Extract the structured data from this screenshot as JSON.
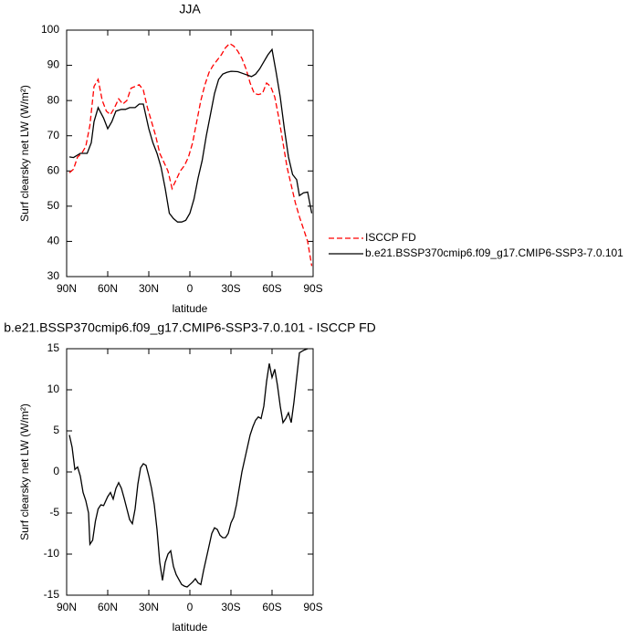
{
  "chart_data": [
    {
      "type": "line",
      "title": "JJA",
      "xlabel": "latitude",
      "ylabel": "Surf clearsky net LW (W/m²)",
      "xlim": [
        90,
        -90
      ],
      "ylim": [
        30,
        100
      ],
      "xticks": [
        {
          "value": 90,
          "label": "90N"
        },
        {
          "value": 60,
          "label": "60N"
        },
        {
          "value": 30,
          "label": "30N"
        },
        0,
        {
          "value": -30,
          "label": "30S"
        },
        {
          "value": -60,
          "label": "60S"
        },
        {
          "value": -90,
          "label": "90S"
        }
      ],
      "yticks": [
        30,
        40,
        50,
        60,
        70,
        80,
        90,
        100
      ],
      "legend": "right",
      "series": [
        {
          "name": "ISCCP FD",
          "color": "#ff0000",
          "dashed": true,
          "x": [
            88,
            85,
            82,
            79,
            76,
            73,
            70,
            67,
            64,
            61,
            58,
            55,
            52,
            49,
            46,
            43,
            40,
            37,
            34,
            31,
            28,
            25,
            22,
            19,
            16,
            13,
            10,
            7,
            4,
            1,
            -2,
            -5,
            -8,
            -11,
            -14,
            -17,
            -20,
            -23,
            -26,
            -29,
            -32,
            -35,
            -38,
            -41,
            -44,
            -47,
            -50,
            -53,
            -56,
            -59,
            -62,
            -65,
            -68,
            -71,
            -74,
            -77,
            -80,
            -83,
            -86,
            -89
          ],
          "values": [
            59.5,
            60.5,
            64,
            65,
            67,
            73,
            84,
            86,
            80,
            77,
            76,
            78,
            80.5,
            79,
            80,
            83.5,
            84,
            84.5,
            83,
            78,
            74,
            70,
            65,
            62.5,
            60,
            55,
            57.5,
            60,
            61.5,
            64,
            68,
            74,
            80,
            84.5,
            88,
            90,
            91.5,
            93,
            95,
            96.2,
            95.5,
            94,
            92,
            89,
            85,
            82,
            81.7,
            82,
            85,
            84,
            81,
            75,
            68,
            61,
            56,
            51,
            47,
            43.5,
            40,
            33
          ]
        },
        {
          "name": "b.e21.BSSP370cmip6.f09_g17.CMIP6-SSP3-7.0.101",
          "color": "#000000",
          "dashed": false,
          "x": [
            88,
            85,
            80,
            75,
            72,
            70,
            67,
            63,
            60,
            57,
            54,
            50,
            47,
            44,
            40,
            37,
            34,
            30,
            27,
            24,
            21,
            18,
            15,
            12,
            9,
            6,
            3,
            0,
            -3,
            -6,
            -9,
            -12,
            -15,
            -18,
            -21,
            -24,
            -27,
            -30,
            -35,
            -40,
            -45,
            -48,
            -51,
            -54,
            -57,
            -60,
            -63,
            -66,
            -69,
            -72,
            -75,
            -78,
            -80,
            -83,
            -86,
            -89
          ],
          "values": [
            64,
            63.8,
            65,
            65,
            68,
            74,
            78,
            75,
            72,
            74,
            77,
            77.5,
            77.5,
            78,
            78,
            79,
            79,
            72,
            68,
            65,
            61,
            55,
            48,
            46.5,
            45.5,
            45.5,
            46,
            48,
            52,
            58,
            63,
            70,
            76,
            82,
            86,
            87.5,
            88,
            88.3,
            88.2,
            87.5,
            86.8,
            87.5,
            89,
            91,
            93,
            94.5,
            88,
            81,
            72,
            64,
            59,
            57.5,
            53,
            53.8,
            54,
            48
          ]
        }
      ]
    },
    {
      "type": "line",
      "title": "b.e21.BSSP370cmip6.f09_g17.CMIP6-SSP3-7.0.101 - ISCCP FD",
      "xlabel": "latitude",
      "ylabel": "Surf clearsky net LW (W/m²)",
      "xlim": [
        90,
        -90
      ],
      "ylim": [
        -15,
        15
      ],
      "xticks": [
        {
          "value": 90,
          "label": "90N"
        },
        {
          "value": 60,
          "label": "60N"
        },
        {
          "value": 30,
          "label": "30N"
        },
        0,
        {
          "value": -30,
          "label": "30S"
        },
        {
          "value": -60,
          "label": "60S"
        },
        {
          "value": -90,
          "label": "90S"
        }
      ],
      "yticks": [
        -15,
        -10,
        -5,
        0,
        5,
        10,
        15
      ],
      "series": [
        {
          "color": "#000000",
          "dashed": false,
          "x": [
            88,
            86,
            84,
            82,
            80,
            78,
            76,
            74,
            73,
            71,
            69,
            67,
            65,
            63,
            60,
            58,
            56,
            54,
            52,
            50,
            48,
            46,
            44,
            42,
            40,
            38,
            36,
            34,
            32,
            30,
            28,
            26,
            24,
            22,
            20,
            18,
            16,
            14,
            12,
            10,
            8,
            6,
            4,
            2,
            0,
            -2,
            -4,
            -6,
            -8,
            -10,
            -12,
            -14,
            -16,
            -18,
            -20,
            -22,
            -24,
            -26,
            -28,
            -30,
            -32,
            -34,
            -36,
            -38,
            -40,
            -42,
            -44,
            -46,
            -48,
            -50,
            -52,
            -54,
            -56,
            -58,
            -60,
            -62,
            -64,
            -66,
            -68,
            -70,
            -72,
            -74,
            -76,
            -78,
            -80,
            -83,
            -86
          ],
          "values": [
            4.5,
            3,
            0.3,
            0.6,
            -0.5,
            -2.5,
            -3.5,
            -5,
            -8.8,
            -8.3,
            -6,
            -4.5,
            -4,
            -4.1,
            -3,
            -2.5,
            -3.3,
            -2,
            -1.3,
            -2,
            -3.2,
            -4.5,
            -5.8,
            -6.3,
            -4.5,
            -1.5,
            0.5,
            1,
            0.8,
            -0.5,
            -2,
            -4,
            -7,
            -11,
            -13.2,
            -11,
            -10,
            -9.6,
            -11.5,
            -12.5,
            -13.1,
            -13.7,
            -13.9,
            -14,
            -13.7,
            -13.4,
            -13,
            -13.5,
            -13.7,
            -12,
            -10.5,
            -9,
            -7.5,
            -6.8,
            -7,
            -7.7,
            -8,
            -8,
            -7.5,
            -6.2,
            -5.5,
            -4,
            -2,
            0,
            1.5,
            3,
            4.5,
            5.5,
            6.3,
            6.7,
            6.5,
            8,
            11,
            13.2,
            11.5,
            12.5,
            10.5,
            8,
            6,
            6.5,
            7.2,
            6,
            8.5,
            11.5,
            14.5,
            14.8,
            15
          ]
        }
      ]
    }
  ]
}
